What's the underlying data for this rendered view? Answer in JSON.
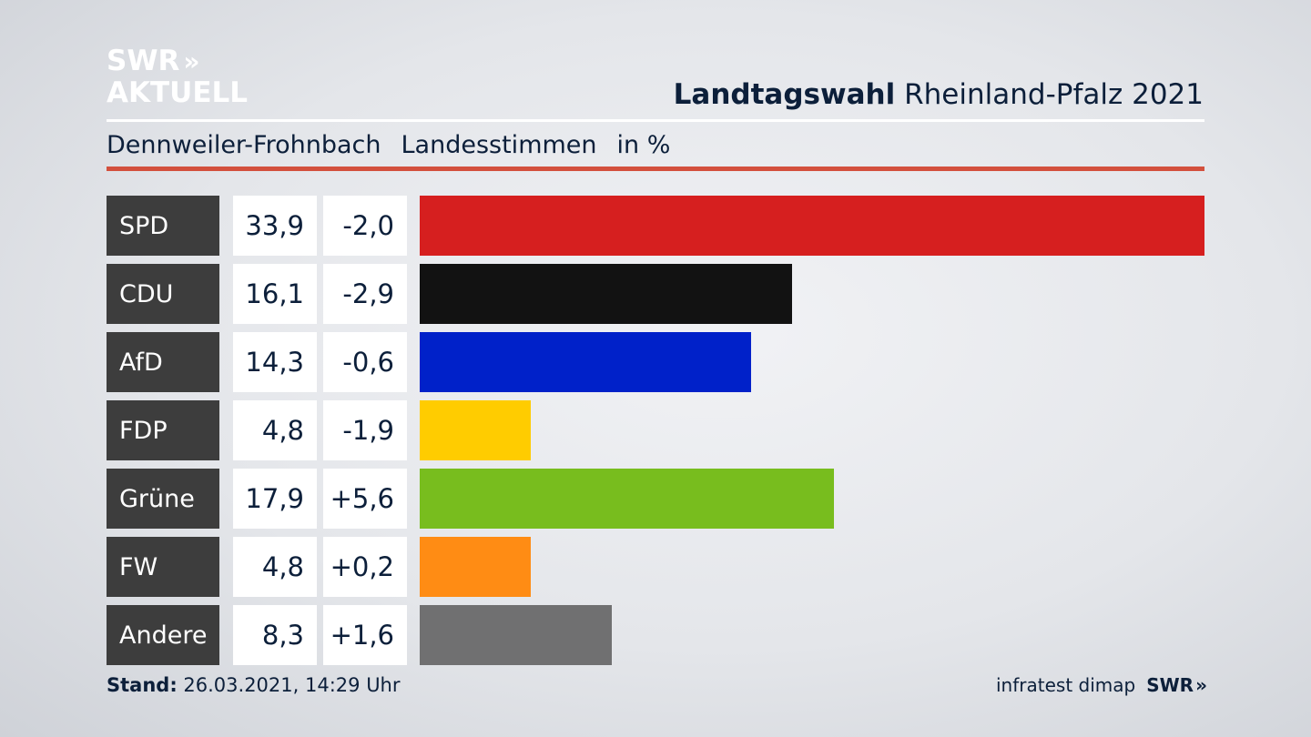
{
  "logo": {
    "line1": "SWR",
    "line1_mark": "»",
    "line2": "AKTUELL"
  },
  "title": {
    "bold": "Landtagswahl",
    "rest": "Rheinland-Pfalz 2021"
  },
  "subtitle": {
    "place": "Dennweiler-Frohnbach",
    "measure": "Landesstimmen",
    "unit": "in %"
  },
  "chart_data": {
    "type": "bar",
    "categories": [
      "SPD",
      "CDU",
      "AfD",
      "FDP",
      "Grüne",
      "FW",
      "Andere"
    ],
    "series": [
      {
        "values": [
          33.9,
          16.1,
          14.3,
          4.8,
          17.9,
          4.8,
          8.3
        ]
      },
      {
        "values": [
          -2.0,
          -2.9,
          -0.6,
          -1.9,
          5.6,
          0.2,
          1.6
        ]
      }
    ],
    "value_labels": [
      "33,9",
      "16,1",
      "14,3",
      "4,8",
      "17,9",
      "4,8",
      "8,3"
    ],
    "diff_labels": [
      "-2,0",
      "-2,9",
      "-0,6",
      "-1,9",
      "+5,6",
      "+0,2",
      "+1,6"
    ],
    "colors": [
      "#d61f1f",
      "#121212",
      "#0021c9",
      "#ffcc00",
      "#78bd1e",
      "#ff8c14",
      "#707071"
    ],
    "orientation": "horizontal"
  },
  "footer": {
    "stand_label": "Stand:",
    "stand_value": "26.03.2021, 14:29 Uhr",
    "source": "infratest dimap",
    "brand": "SWR",
    "brand_mark": "»"
  }
}
